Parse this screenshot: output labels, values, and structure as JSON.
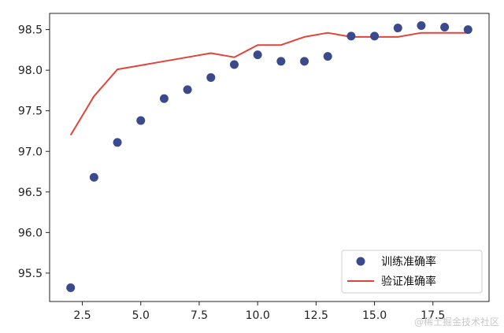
{
  "chart_data": {
    "type": "scatter",
    "x_ticks": [
      "2.5",
      "5.0",
      "7.5",
      "10.0",
      "12.5",
      "15.0",
      "17.5"
    ],
    "y_ticks": [
      "95.5",
      "96.0",
      "96.5",
      "97.0",
      "97.5",
      "98.0",
      "98.5"
    ],
    "xlim": [
      1.1,
      19.9
    ],
    "ylim": [
      95.15,
      98.7
    ],
    "grid": false,
    "legend_position": "bottom-right",
    "series": [
      {
        "name": "训练准确率",
        "kind": "scatter",
        "color": "#3b4a8c",
        "x": [
          2,
          3,
          4,
          5,
          6,
          7,
          8,
          9,
          10,
          11,
          12,
          13,
          14,
          15,
          16,
          17,
          18,
          19
        ],
        "y": [
          95.32,
          96.68,
          97.11,
          97.38,
          97.65,
          97.76,
          97.91,
          98.07,
          98.19,
          98.11,
          98.11,
          98.17,
          98.42,
          98.42,
          98.52,
          98.55,
          98.53,
          98.5
        ]
      },
      {
        "name": "验证准确率",
        "kind": "line",
        "color": "#e0443a",
        "x": [
          2,
          3,
          4,
          5,
          6,
          7,
          8,
          9,
          10,
          11,
          12,
          13,
          14,
          15,
          16,
          17,
          18,
          19
        ],
        "y": [
          97.2,
          97.68,
          98.01,
          98.06,
          98.11,
          98.16,
          98.21,
          98.16,
          98.31,
          98.31,
          98.41,
          98.46,
          98.41,
          98.41,
          98.41,
          98.46,
          98.46,
          98.46
        ]
      }
    ]
  },
  "watermark": "@稀土掘金技术社区"
}
